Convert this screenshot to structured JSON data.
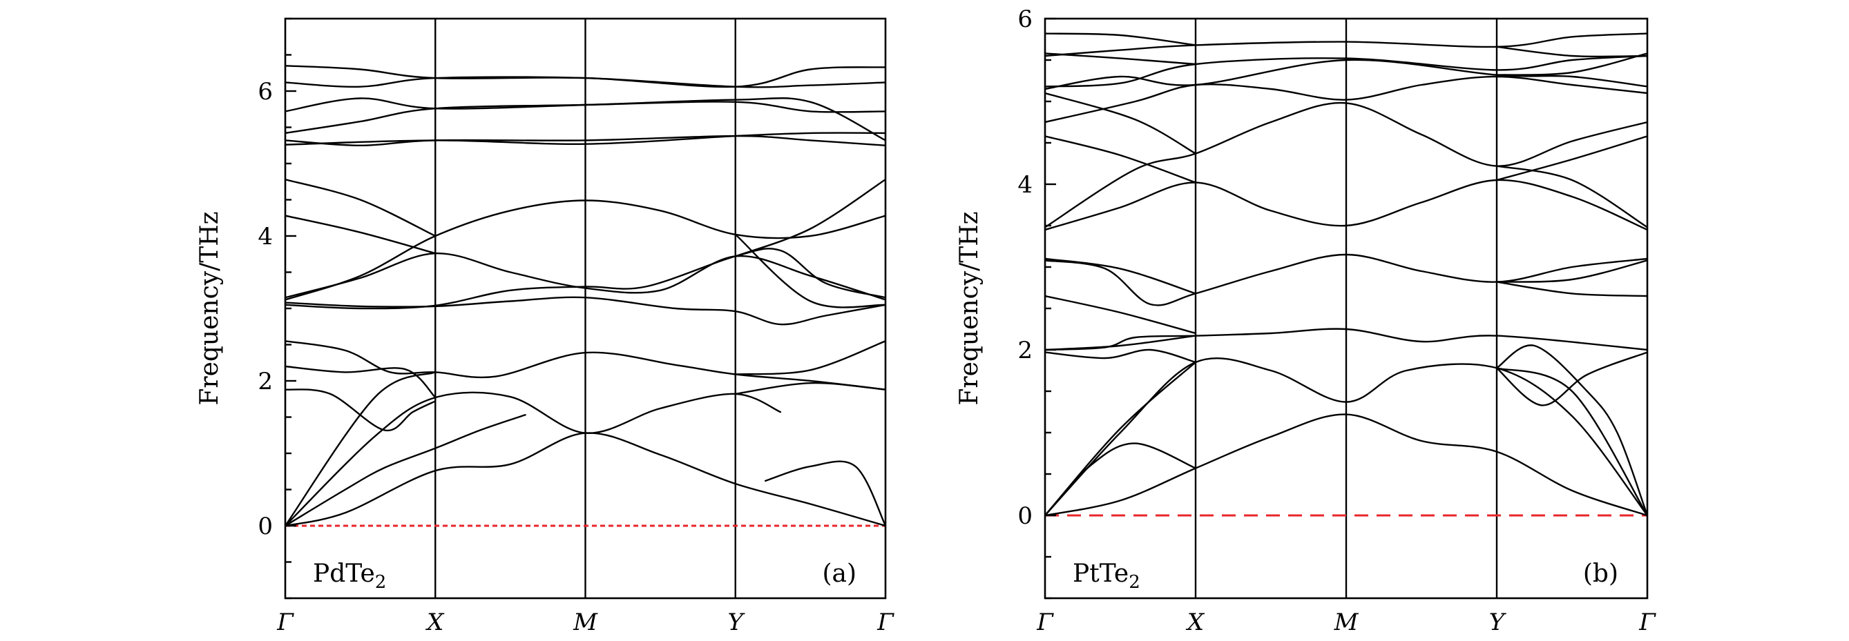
{
  "chart_data": [
    {
      "type": "line",
      "material": "PdTe",
      "material_sub": "2",
      "panel_tag": "(a)",
      "ylabel": "Frequency/THz",
      "xlabel": "",
      "ylim": [
        -1,
        7
      ],
      "yticks": [
        "0",
        "2",
        "4",
        "6"
      ],
      "ytick_values": [
        0,
        2,
        4,
        6
      ],
      "minor_tick_step": 0.5,
      "xticks": [
        "Γ",
        "X",
        "M",
        "Y",
        "Γ"
      ],
      "segments": 4,
      "zero_line": {
        "value": 0,
        "style": "dotted",
        "color": "#e8262b"
      },
      "bands": [
        [
          [
            0,
            0
          ],
          [
            0.4,
            0.18
          ],
          [
            1,
            0.76
          ],
          [
            1.5,
            0.85
          ],
          [
            2,
            1.28
          ],
          [
            2.5,
            0.98
          ],
          [
            3,
            0.58
          ],
          [
            3.5,
            0.3
          ],
          [
            4,
            0
          ]
        ],
        [
          [
            0,
            0
          ],
          [
            0.4,
            0.5
          ],
          [
            0.66,
            0.8
          ],
          [
            1,
            1.07
          ],
          [
            1.3,
            1.32
          ],
          [
            1.6,
            1.53
          ]
        ],
        [
          [
            0,
            0
          ],
          [
            0.6,
            1.24
          ],
          [
            1,
            1.77
          ],
          [
            1.5,
            1.78
          ],
          [
            2,
            1.28
          ],
          [
            2.5,
            1.62
          ],
          [
            3,
            1.82
          ],
          [
            3.3,
            1.57
          ]
        ],
        [
          [
            0,
            0
          ],
          [
            0.6,
            1.78
          ],
          [
            1,
            2.12
          ]
        ],
        [
          [
            0,
            1.88
          ],
          [
            0.3,
            1.82
          ],
          [
            0.66,
            1.32
          ],
          [
            0.85,
            1.57
          ],
          [
            1,
            1.72
          ]
        ],
        [
          [
            0,
            2.55
          ],
          [
            0.4,
            2.42
          ],
          [
            0.7,
            2.12
          ],
          [
            1,
            2.12
          ],
          [
            1.4,
            2.06
          ],
          [
            2,
            2.39
          ],
          [
            2.6,
            2.22
          ],
          [
            3,
            2.09
          ],
          [
            3.5,
            2.0
          ],
          [
            4,
            1.88
          ]
        ],
        [
          [
            0,
            2.2
          ],
          [
            0.4,
            2.12
          ],
          [
            0.8,
            2.16
          ],
          [
            1,
            1.77
          ]
        ],
        [
          [
            3,
            2.09
          ],
          [
            3.5,
            2.15
          ],
          [
            4,
            2.55
          ]
        ],
        [
          [
            3,
            1.82
          ],
          [
            3.5,
            1.97
          ],
          [
            4,
            1.88
          ]
        ],
        [
          [
            3.2,
            0.62
          ],
          [
            3.5,
            0.82
          ],
          [
            3.8,
            0.82
          ],
          [
            4,
            0
          ]
        ],
        [
          [
            0,
            3.08
          ],
          [
            0.5,
            3.03
          ],
          [
            1,
            3.03
          ],
          [
            1.5,
            3.1
          ],
          [
            2,
            3.15
          ],
          [
            2.6,
            3.0
          ],
          [
            3,
            2.96
          ],
          [
            3.3,
            2.78
          ],
          [
            3.6,
            2.9
          ],
          [
            4,
            3.05
          ]
        ],
        [
          [
            0,
            3.05
          ],
          [
            0.5,
            3.0
          ],
          [
            1,
            3.04
          ],
          [
            1.5,
            3.25
          ],
          [
            2,
            3.3
          ],
          [
            2.4,
            3.3
          ],
          [
            3,
            3.72
          ],
          [
            3.3,
            3.8
          ],
          [
            3.6,
            3.35
          ],
          [
            4,
            3.15
          ]
        ],
        [
          [
            0,
            3.12
          ],
          [
            0.5,
            3.45
          ],
          [
            1,
            4.0
          ],
          [
            1.5,
            4.35
          ],
          [
            2,
            4.49
          ],
          [
            2.5,
            4.35
          ],
          [
            3,
            4.02
          ],
          [
            3.5,
            4.0
          ],
          [
            4,
            4.28
          ]
        ],
        [
          [
            0,
            3.15
          ],
          [
            0.5,
            3.42
          ],
          [
            1,
            3.76
          ],
          [
            1.5,
            3.5
          ],
          [
            2,
            3.28
          ],
          [
            2.5,
            3.25
          ],
          [
            3,
            3.72
          ],
          [
            3.5,
            3.45
          ],
          [
            4,
            3.12
          ]
        ],
        [
          [
            0,
            4.28
          ],
          [
            0.5,
            4.05
          ],
          [
            1,
            3.76
          ]
        ],
        [
          [
            0,
            4.78
          ],
          [
            0.5,
            4.5
          ],
          [
            1,
            4.0
          ]
        ],
        [
          [
            3,
            3.72
          ],
          [
            3.5,
            4.1
          ],
          [
            4,
            4.78
          ]
        ],
        [
          [
            3,
            4.02
          ],
          [
            3.5,
            3.1
          ],
          [
            4,
            3.05
          ]
        ],
        [
          [
            0,
            5.26
          ],
          [
            1,
            5.32
          ],
          [
            2,
            5.27
          ],
          [
            3,
            5.38
          ],
          [
            3.5,
            5.42
          ],
          [
            4,
            5.42
          ]
        ],
        [
          [
            0,
            5.32
          ],
          [
            0.5,
            5.25
          ],
          [
            1,
            5.32
          ],
          [
            2,
            5.32
          ],
          [
            3,
            5.38
          ],
          [
            3.5,
            5.32
          ],
          [
            4,
            5.25
          ]
        ],
        [
          [
            0,
            5.42
          ],
          [
            0.5,
            5.58
          ],
          [
            1,
            5.76
          ],
          [
            2,
            5.81
          ],
          [
            3,
            5.85
          ],
          [
            3.5,
            5.72
          ],
          [
            4,
            5.72
          ]
        ],
        [
          [
            0,
            5.72
          ],
          [
            0.5,
            5.9
          ],
          [
            1,
            5.76
          ],
          [
            2,
            5.81
          ],
          [
            3,
            5.88
          ],
          [
            3.5,
            5.85
          ],
          [
            4,
            5.32
          ]
        ],
        [
          [
            0,
            6.12
          ],
          [
            0.5,
            6.06
          ],
          [
            1,
            6.18
          ],
          [
            2,
            6.18
          ],
          [
            3,
            6.06
          ],
          [
            3.5,
            6.08
          ],
          [
            4,
            6.12
          ]
        ],
        [
          [
            0,
            6.35
          ],
          [
            0.5,
            6.3
          ],
          [
            1,
            6.18
          ],
          [
            2,
            6.18
          ],
          [
            3,
            6.06
          ],
          [
            3.5,
            6.3
          ],
          [
            4,
            6.33
          ]
        ]
      ]
    },
    {
      "type": "line",
      "material": "PtTe",
      "material_sub": "2",
      "panel_tag": "(b)",
      "ylabel": "Frequency/THz",
      "xlabel": "",
      "ylim": [
        -1,
        6
      ],
      "yticks": [
        "0",
        "2",
        "4",
        "6"
      ],
      "ytick_values": [
        0,
        2,
        4,
        6
      ],
      "minor_tick_step": 0.5,
      "xticks": [
        "Γ",
        "X",
        "M",
        "Y",
        "Γ"
      ],
      "segments": 4,
      "zero_line": {
        "value": 0,
        "style": "dashed",
        "color": "#e8262b"
      },
      "bands": [
        [
          [
            0,
            0
          ],
          [
            0.5,
            0.18
          ],
          [
            1,
            0.57
          ],
          [
            1.5,
            0.95
          ],
          [
            2,
            1.22
          ],
          [
            2.5,
            0.9
          ],
          [
            3,
            0.77
          ],
          [
            3.5,
            0.3
          ],
          [
            4,
            0
          ]
        ],
        [
          [
            0,
            0
          ],
          [
            0.3,
            0.6
          ],
          [
            0.6,
            0.87
          ],
          [
            1,
            0.57
          ]
        ],
        [
          [
            0,
            0
          ],
          [
            0.5,
            1.0
          ],
          [
            1,
            1.85
          ],
          [
            1.5,
            1.75
          ],
          [
            2,
            1.37
          ],
          [
            2.4,
            1.75
          ],
          [
            3,
            1.78
          ],
          [
            3.5,
            1.2
          ],
          [
            4,
            0
          ]
        ],
        [
          [
            0,
            0
          ],
          [
            0.5,
            1.05
          ],
          [
            1,
            1.85
          ]
        ],
        [
          [
            0,
            1.97
          ],
          [
            0.4,
            1.9
          ],
          [
            0.7,
            2.0
          ],
          [
            1,
            1.85
          ]
        ],
        [
          [
            0,
            2.0
          ],
          [
            0.4,
            2.03
          ],
          [
            0.6,
            2.15
          ],
          [
            1,
            2.17
          ],
          [
            1.5,
            2.2
          ],
          [
            2,
            2.25
          ],
          [
            2.5,
            2.1
          ],
          [
            3,
            2.17
          ],
          [
            4,
            2.0
          ]
        ],
        [
          [
            0,
            2.0
          ],
          [
            0.5,
            2.05
          ],
          [
            1,
            2.17
          ]
        ],
        [
          [
            3,
            1.78
          ],
          [
            3.3,
            1.33
          ],
          [
            3.6,
            1.7
          ],
          [
            4,
            1.97
          ]
        ],
        [
          [
            3,
            1.78
          ],
          [
            3.5,
            1.5
          ],
          [
            4,
            0
          ]
        ],
        [
          [
            3,
            1.78
          ],
          [
            3.25,
            2.05
          ],
          [
            3.6,
            1.5
          ],
          [
            3.8,
            1.0
          ],
          [
            4,
            0
          ]
        ],
        [
          [
            0,
            2.65
          ],
          [
            0.5,
            2.45
          ],
          [
            1,
            2.2
          ]
        ],
        [
          [
            0,
            3.08
          ],
          [
            0.4,
            2.98
          ],
          [
            0.7,
            2.55
          ],
          [
            1,
            2.68
          ],
          [
            1.5,
            2.95
          ],
          [
            2,
            3.15
          ],
          [
            2.5,
            2.95
          ],
          [
            3,
            2.82
          ],
          [
            3.5,
            3.0
          ],
          [
            4,
            3.1
          ]
        ],
        [
          [
            0,
            3.1
          ],
          [
            0.5,
            2.98
          ],
          [
            1,
            2.68
          ]
        ],
        [
          [
            3,
            2.82
          ],
          [
            3.5,
            2.68
          ],
          [
            4,
            2.65
          ]
        ],
        [
          [
            3,
            2.82
          ],
          [
            3.5,
            2.85
          ],
          [
            4,
            3.08
          ]
        ],
        [
          [
            0,
            3.45
          ],
          [
            0.5,
            3.72
          ],
          [
            1,
            4.02
          ],
          [
            1.5,
            3.68
          ],
          [
            2,
            3.5
          ],
          [
            2.5,
            3.78
          ],
          [
            3,
            4.05
          ],
          [
            3.5,
            3.85
          ],
          [
            4,
            3.45
          ]
        ],
        [
          [
            0,
            3.48
          ],
          [
            0.6,
            4.18
          ],
          [
            1,
            4.37
          ],
          [
            1.5,
            4.75
          ],
          [
            2,
            4.98
          ],
          [
            2.5,
            4.6
          ],
          [
            3,
            4.22
          ],
          [
            3.5,
            4.52
          ],
          [
            4,
            4.75
          ]
        ],
        [
          [
            0,
            4.58
          ],
          [
            0.5,
            4.35
          ],
          [
            1,
            4.02
          ]
        ],
        [
          [
            0,
            4.75
          ],
          [
            0.6,
            5.0
          ],
          [
            1,
            5.2
          ],
          [
            1.5,
            5.15
          ],
          [
            2,
            5.02
          ],
          [
            2.5,
            5.2
          ],
          [
            3,
            5.3
          ],
          [
            3.5,
            5.2
          ],
          [
            4,
            5.1
          ]
        ],
        [
          [
            0,
            5.1
          ],
          [
            0.6,
            4.78
          ],
          [
            1,
            4.37
          ]
        ],
        [
          [
            3,
            4.05
          ],
          [
            3.5,
            4.3
          ],
          [
            4,
            4.58
          ]
        ],
        [
          [
            3,
            4.22
          ],
          [
            3.5,
            4.05
          ],
          [
            4,
            3.48
          ]
        ],
        [
          [
            0,
            5.15
          ],
          [
            0.5,
            5.3
          ],
          [
            1,
            5.2
          ],
          [
            2,
            5.5
          ],
          [
            3,
            5.32
          ],
          [
            3.5,
            5.3
          ],
          [
            4,
            5.18
          ]
        ],
        [
          [
            0,
            5.18
          ],
          [
            0.5,
            5.22
          ],
          [
            1,
            5.45
          ],
          [
            2,
            5.52
          ],
          [
            3,
            5.38
          ],
          [
            3.5,
            5.5
          ],
          [
            4,
            5.55
          ]
        ],
        [
          [
            0,
            5.55
          ],
          [
            0.5,
            5.62
          ],
          [
            1,
            5.68
          ],
          [
            2,
            5.72
          ],
          [
            3,
            5.66
          ],
          [
            3.5,
            5.78
          ],
          [
            4,
            5.82
          ]
        ],
        [
          [
            0,
            5.58
          ],
          [
            0.5,
            5.52
          ],
          [
            1,
            5.45
          ]
        ],
        [
          [
            0,
            5.82
          ],
          [
            0.5,
            5.8
          ],
          [
            1,
            5.68
          ]
        ],
        [
          [
            3,
            5.66
          ],
          [
            3.5,
            5.55
          ],
          [
            4,
            5.55
          ]
        ],
        [
          [
            3,
            5.32
          ],
          [
            3.5,
            5.35
          ],
          [
            4,
            5.58
          ]
        ]
      ]
    }
  ]
}
